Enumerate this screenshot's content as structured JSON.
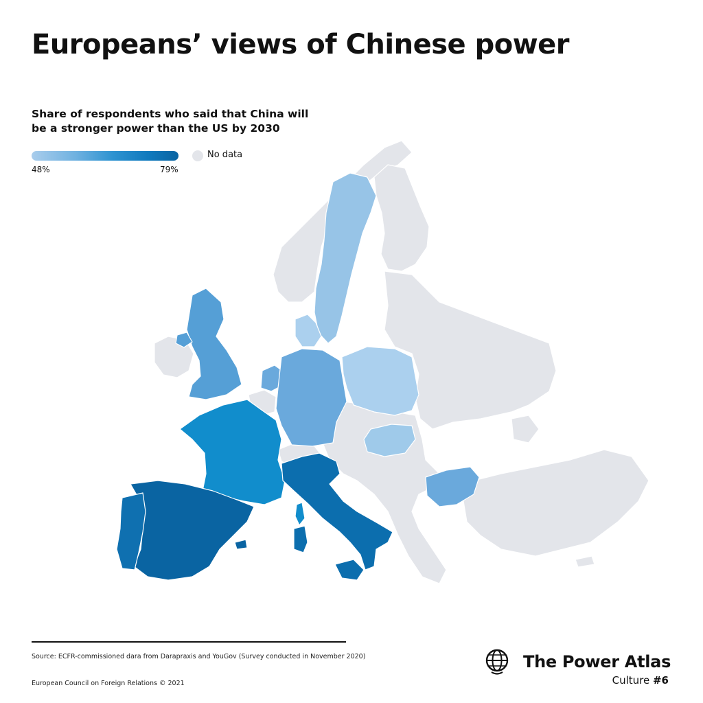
{
  "header": {
    "title": "Europeans’ views of Chinese power",
    "subtitle": "Share of respondents who said that China will be a stronger power than the US by 2030"
  },
  "legend": {
    "min_label": "48%",
    "max_label": "79%",
    "no_data_label": "No data",
    "colors": {
      "low": "#a9cdec",
      "high": "#0a64a2",
      "no_data": "#e3e5ea"
    }
  },
  "map": {
    "type": "choropleth",
    "shaded_countries": [
      {
        "name": "Spain",
        "color": "#0a64a2"
      },
      {
        "name": "Portugal",
        "color": "#0f70b0"
      },
      {
        "name": "Italy",
        "color": "#0c6eae"
      },
      {
        "name": "France",
        "color": "#118dcc"
      },
      {
        "name": "United Kingdom",
        "color": "#559fd6"
      },
      {
        "name": "Germany",
        "color": "#6aa9dc"
      },
      {
        "name": "Bulgaria",
        "color": "#6aa9dc"
      },
      {
        "name": "Netherlands",
        "color": "#6aa9dc"
      },
      {
        "name": "Sweden",
        "color": "#97c4e7"
      },
      {
        "name": "Hungary",
        "color": "#9fcaea"
      },
      {
        "name": "Poland",
        "color": "#abd0ee"
      },
      {
        "name": "Denmark",
        "color": "#abd0ee"
      }
    ]
  },
  "footer": {
    "source": "Source: ECFR-commissioned dara from Darapraxis and YouGov (Survey conducted in November 2020)",
    "copyright": "European Council on Foreign Relations © 2021",
    "brand_name": "The Power Atlas",
    "series_label": "Culture ",
    "series_number": "#6"
  }
}
